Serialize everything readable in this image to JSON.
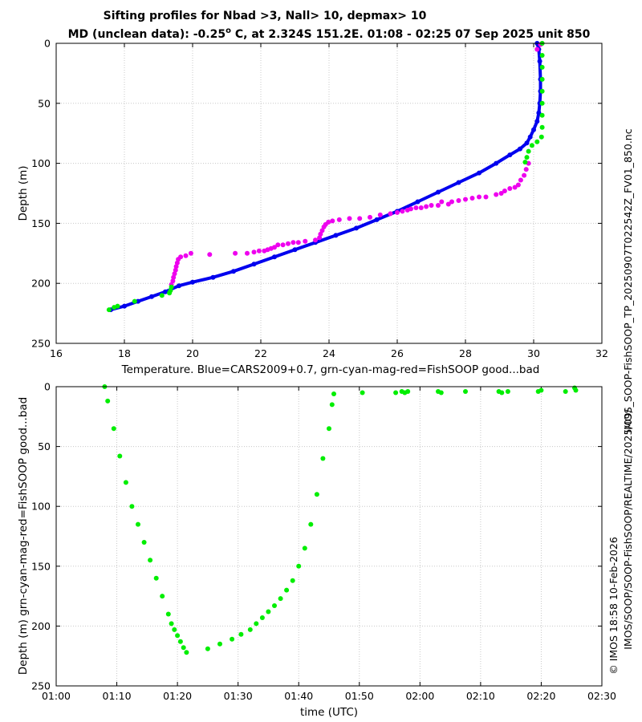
{
  "title": {
    "line1": "Sifting profiles for Nbad >3, Nall> 10, depmax> 10",
    "line2_prefix": "MD (unclean data): -0.25",
    "line2_degree": "o",
    "line2_suffix": " C, at 2.324S 151.2E. 01:08 - 02:25 07 Sep 2025 unit 850"
  },
  "side_labels": {
    "filename": "IMOS_SOOP-FishSOOP_TP_20250907T022542Z_FV01_850.nc",
    "path": "IMOS/SOOP/SOOP-FishSOOP/REALTIME/2025/09/",
    "credit": "© IMOS 18:58 10-Feb-2026"
  },
  "colors": {
    "blue": "#0000ee",
    "green": "#00ee00",
    "magenta": "#ee00ee"
  },
  "chart_data": [
    {
      "type": "scatter",
      "xlabel": "Temperature. Blue=CARS2009+0.7, grn-cyan-mag-red=FishSOOP good...bad",
      "ylabel": "Depth (m)",
      "xlim": [
        16,
        32
      ],
      "ylim": [
        250,
        0
      ],
      "xticks": [
        16,
        18,
        20,
        22,
        24,
        26,
        28,
        30,
        32
      ],
      "yticks": [
        0,
        50,
        100,
        150,
        200,
        250
      ],
      "grid": true,
      "series": [
        {
          "name": "CARS2009+0.7",
          "color": "blue",
          "style": "line-dots",
          "points": [
            [
              30.1,
              0
            ],
            [
              30.15,
              5
            ],
            [
              30.18,
              15
            ],
            [
              30.2,
              30
            ],
            [
              30.2,
              40
            ],
            [
              30.18,
              50
            ],
            [
              30.15,
              58
            ],
            [
              30.1,
              65
            ],
            [
              30.0,
              72
            ],
            [
              29.9,
              78
            ],
            [
              29.8,
              83
            ],
            [
              29.6,
              88
            ],
            [
              29.3,
              93
            ],
            [
              28.9,
              100
            ],
            [
              28.4,
              108
            ],
            [
              27.8,
              116
            ],
            [
              27.2,
              124
            ],
            [
              26.6,
              132
            ],
            [
              26.0,
              140
            ],
            [
              25.4,
              147
            ],
            [
              24.8,
              154
            ],
            [
              24.2,
              160
            ],
            [
              23.6,
              166
            ],
            [
              23.0,
              172
            ],
            [
              22.4,
              178
            ],
            [
              21.8,
              184
            ],
            [
              21.2,
              190
            ],
            [
              20.6,
              195
            ],
            [
              20.0,
              199
            ],
            [
              19.6,
              202
            ],
            [
              19.2,
              207
            ],
            [
              18.8,
              211
            ],
            [
              18.4,
              215
            ],
            [
              18.0,
              219
            ],
            [
              17.6,
              222
            ]
          ]
        },
        {
          "name": "FishSOOP magenta",
          "color": "magenta",
          "style": "dots",
          "points": [
            [
              30.25,
              0
            ],
            [
              30.2,
              1
            ],
            [
              30.1,
              5
            ],
            [
              29.85,
              100
            ],
            [
              29.78,
              105
            ],
            [
              29.72,
              110
            ],
            [
              29.62,
              114
            ],
            [
              29.55,
              118
            ],
            [
              29.45,
              120
            ],
            [
              29.3,
              121
            ],
            [
              29.15,
              123
            ],
            [
              29.05,
              125
            ],
            [
              28.9,
              126
            ],
            [
              28.6,
              128
            ],
            [
              28.4,
              128
            ],
            [
              28.2,
              129
            ],
            [
              28.0,
              130
            ],
            [
              27.8,
              131
            ],
            [
              27.6,
              132
            ],
            [
              27.5,
              134
            ],
            [
              27.3,
              132
            ],
            [
              27.2,
              135
            ],
            [
              27.0,
              135
            ],
            [
              26.85,
              136
            ],
            [
              26.7,
              137
            ],
            [
              26.55,
              137
            ],
            [
              26.4,
              138
            ],
            [
              26.3,
              139
            ],
            [
              26.15,
              140
            ],
            [
              26.0,
              141
            ],
            [
              25.8,
              142
            ],
            [
              25.5,
              143
            ],
            [
              25.2,
              145
            ],
            [
              24.9,
              146
            ],
            [
              24.6,
              146
            ],
            [
              24.3,
              147
            ],
            [
              24.1,
              148
            ],
            [
              23.98,
              149
            ],
            [
              23.9,
              151
            ],
            [
              23.85,
              153
            ],
            [
              23.8,
              156
            ],
            [
              23.75,
              159
            ],
            [
              23.72,
              162
            ],
            [
              23.6,
              164
            ],
            [
              23.3,
              165
            ],
            [
              23.1,
              166
            ],
            [
              22.95,
              166
            ],
            [
              22.8,
              167
            ],
            [
              22.65,
              168
            ],
            [
              22.5,
              168
            ],
            [
              22.4,
              170
            ],
            [
              22.3,
              171
            ],
            [
              22.2,
              172
            ],
            [
              22.1,
              173
            ],
            [
              21.95,
              173
            ],
            [
              21.8,
              174
            ],
            [
              21.6,
              175
            ],
            [
              21.25,
              175
            ],
            [
              19.95,
              175
            ],
            [
              20.5,
              176
            ],
            [
              19.8,
              177
            ],
            [
              19.65,
              178
            ],
            [
              19.58,
              180
            ],
            [
              19.55,
              183
            ],
            [
              19.52,
              186
            ],
            [
              19.5,
              189
            ],
            [
              19.47,
              192
            ],
            [
              19.44,
              195
            ],
            [
              19.42,
              198
            ],
            [
              19.38,
              201
            ]
          ]
        },
        {
          "name": "FishSOOP green",
          "color": "green",
          "style": "dots",
          "points": [
            [
              30.25,
              0
            ],
            [
              30.25,
              10
            ],
            [
              30.25,
              20
            ],
            [
              30.25,
              30
            ],
            [
              30.25,
              40
            ],
            [
              30.25,
              50
            ],
            [
              30.25,
              60
            ],
            [
              30.25,
              70
            ],
            [
              30.23,
              78
            ],
            [
              30.1,
              82
            ],
            [
              29.95,
              85
            ],
            [
              29.85,
              90
            ],
            [
              29.8,
              95
            ],
            [
              29.75,
              99
            ],
            [
              19.38,
              203
            ],
            [
              19.35,
              206
            ],
            [
              19.32,
              208
            ],
            [
              19.1,
              210
            ],
            [
              18.3,
              215
            ],
            [
              17.8,
              219
            ],
            [
              17.7,
              220
            ],
            [
              17.55,
              222
            ]
          ]
        }
      ]
    },
    {
      "type": "scatter",
      "xlabel": "time (UTC)",
      "ylabel": "Depth (m) grn-cyan-mag-red=FishSOOP good...bad",
      "xlim": [
        60,
        150
      ],
      "ylim": [
        250,
        0
      ],
      "xticks": [
        60,
        70,
        80,
        90,
        100,
        110,
        120,
        130,
        140,
        150
      ],
      "xticklabels": [
        "01:00",
        "01:10",
        "01:20",
        "01:30",
        "01:40",
        "01:50",
        "02:00",
        "02:10",
        "02:20",
        "02:30"
      ],
      "yticks": [
        0,
        50,
        100,
        150,
        200,
        250
      ],
      "grid": true,
      "series": [
        {
          "name": "FishSOOP green",
          "color": "green",
          "style": "dots",
          "points": [
            [
              68.0,
              0
            ],
            [
              68.5,
              12
            ],
            [
              69.5,
              35
            ],
            [
              70.5,
              58
            ],
            [
              71.5,
              80
            ],
            [
              72.5,
              100
            ],
            [
              73.5,
              115
            ],
            [
              74.5,
              130
            ],
            [
              75.5,
              145
            ],
            [
              76.5,
              160
            ],
            [
              77.5,
              175
            ],
            [
              78.5,
              190
            ],
            [
              79.0,
              198
            ],
            [
              79.5,
              203
            ],
            [
              80.0,
              208
            ],
            [
              80.5,
              213
            ],
            [
              81.0,
              218
            ],
            [
              81.5,
              222
            ],
            [
              85.0,
              219
            ],
            [
              87.0,
              215
            ],
            [
              89.0,
              211
            ],
            [
              90.5,
              207
            ],
            [
              92.0,
              203
            ],
            [
              93.0,
              198
            ],
            [
              94.0,
              193
            ],
            [
              95.0,
              188
            ],
            [
              96.0,
              183
            ],
            [
              97.0,
              177
            ],
            [
              98.0,
              170
            ],
            [
              99.0,
              162
            ],
            [
              100.0,
              150
            ],
            [
              101.0,
              135
            ],
            [
              102.0,
              115
            ],
            [
              103.0,
              90
            ],
            [
              104.0,
              60
            ],
            [
              105.0,
              35
            ],
            [
              105.5,
              15
            ],
            [
              105.8,
              6
            ],
            [
              110.5,
              5
            ],
            [
              116.0,
              5
            ],
            [
              117.0,
              4
            ],
            [
              117.5,
              5
            ],
            [
              118.0,
              4
            ],
            [
              123.0,
              4
            ],
            [
              123.5,
              5
            ],
            [
              127.5,
              4
            ],
            [
              133.0,
              4
            ],
            [
              133.5,
              5
            ],
            [
              134.5,
              4
            ],
            [
              139.5,
              4
            ],
            [
              140.0,
              3
            ],
            [
              144.0,
              4
            ],
            [
              145.5,
              1
            ],
            [
              145.7,
              3
            ]
          ]
        }
      ]
    }
  ]
}
